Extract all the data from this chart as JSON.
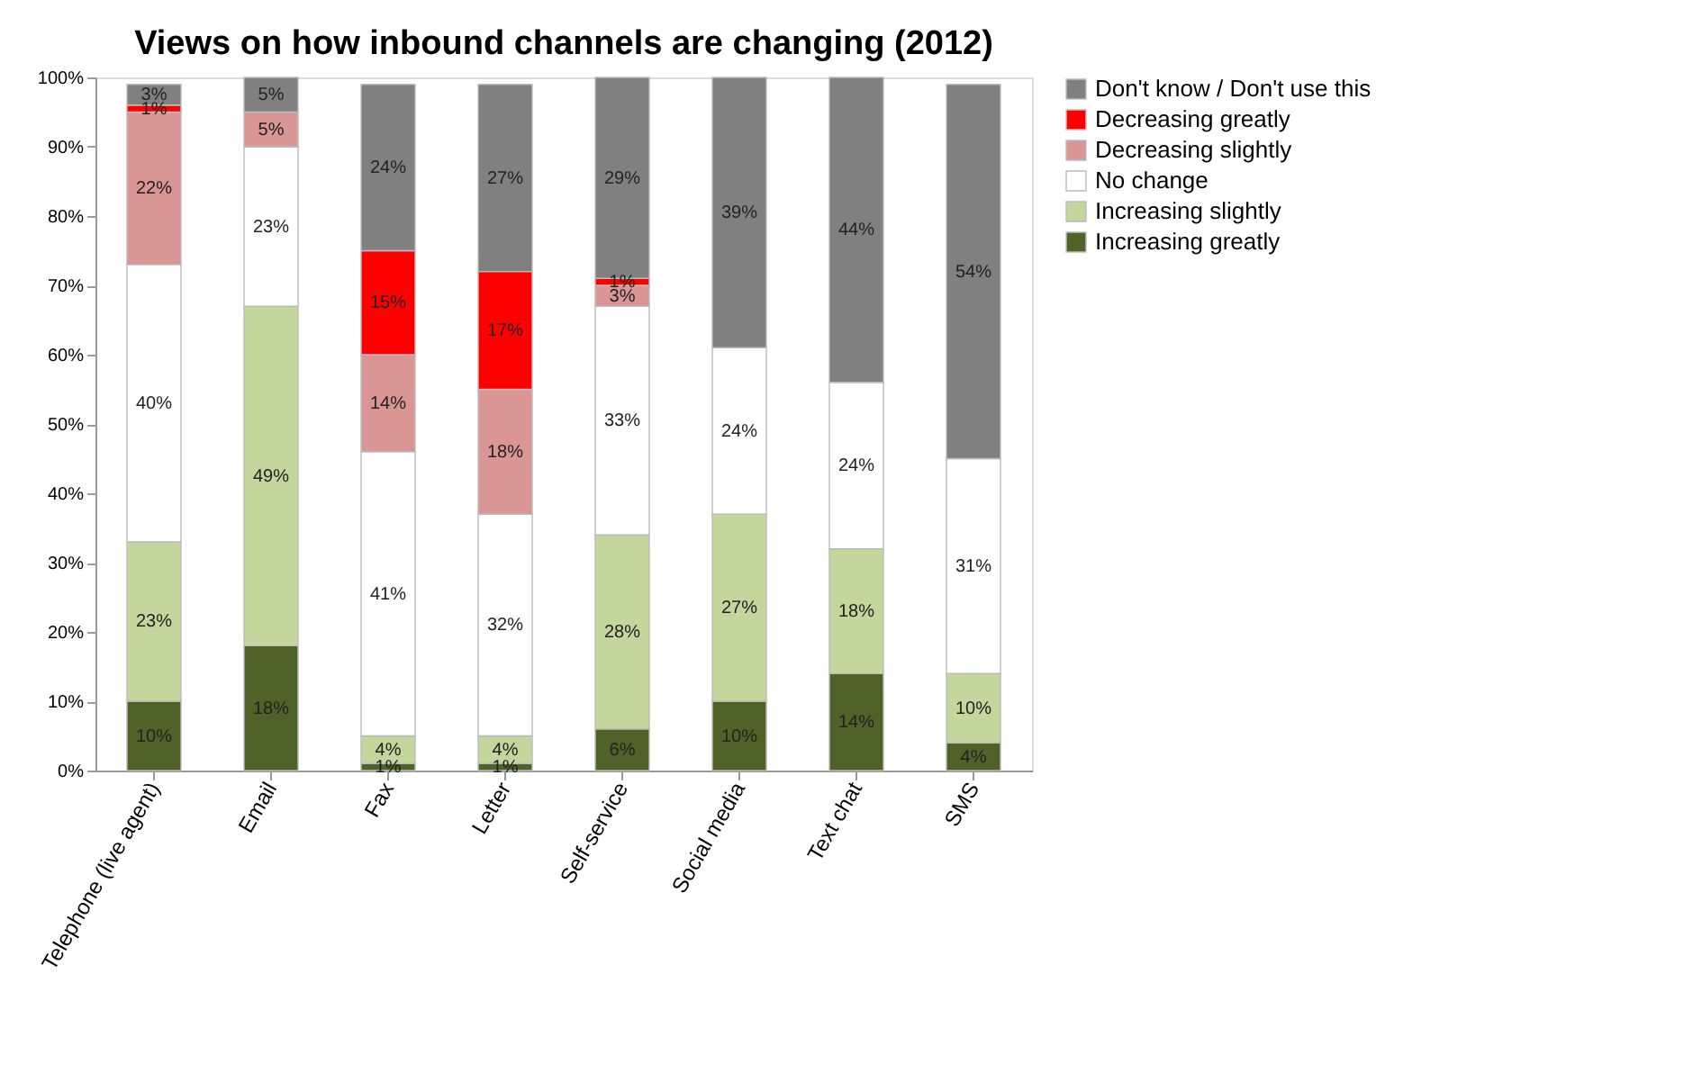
{
  "chart_data": {
    "type": "bar",
    "stacked": true,
    "title": "Views on how inbound channels are changing (2012)",
    "categories": [
      "Telephone (live agent)",
      "Email",
      "Fax",
      "Letter",
      "Self-service",
      "Social media",
      "Text chat",
      "SMS"
    ],
    "series": [
      {
        "name": "Increasing greatly",
        "color": "#4f6228",
        "values": [
          10,
          18,
          1,
          1,
          6,
          10,
          14,
          4
        ],
        "value_labels": [
          "10%",
          "18%",
          "1%",
          "1%",
          "6%",
          "10%",
          "14%",
          "4%"
        ]
      },
      {
        "name": "Increasing slightly",
        "color": "#c3d69b",
        "values": [
          23,
          49,
          4,
          4,
          28,
          27,
          18,
          10
        ],
        "value_labels": [
          "23%",
          "49%",
          "4%",
          "4%",
          "28%",
          "27%",
          "18%",
          "10%"
        ]
      },
      {
        "name": "No change",
        "color": "#ffffff",
        "values": [
          40,
          23,
          41,
          32,
          33,
          24,
          24,
          31
        ],
        "value_labels": [
          "40%",
          "23%",
          "41%",
          "32%",
          "33%",
          "24%",
          "24%",
          "31%"
        ]
      },
      {
        "name": "Decreasing slightly",
        "color": "#d99694",
        "values": [
          22,
          5,
          14,
          18,
          3,
          null,
          null,
          null
        ],
        "value_labels": [
          "22%",
          "5%",
          "14%",
          "18%",
          "3%",
          null,
          null,
          null
        ]
      },
      {
        "name": "Decreasing greatly",
        "color": "#ff0000",
        "values": [
          1,
          null,
          15,
          17,
          1,
          null,
          null,
          null
        ],
        "value_labels": [
          "1%",
          null,
          "15%",
          "17%",
          "1%",
          null,
          null,
          null
        ]
      },
      {
        "name": "Don't know / Don't use this",
        "color": "#808080",
        "values": [
          3,
          5,
          24,
          27,
          29,
          39,
          44,
          54
        ],
        "value_labels": [
          "3%",
          "5%",
          "24%",
          "27%",
          "29%",
          "39%",
          "44%",
          "54%"
        ]
      }
    ],
    "ylim": [
      0,
      100
    ],
    "yticks": [
      {
        "value": 0,
        "label": "0%"
      },
      {
        "value": 10,
        "label": "10%"
      },
      {
        "value": 20,
        "label": "20%"
      },
      {
        "value": 30,
        "label": "30%"
      },
      {
        "value": 40,
        "label": "40%"
      },
      {
        "value": 50,
        "label": "50%"
      },
      {
        "value": 60,
        "label": "60%"
      },
      {
        "value": 70,
        "label": "70%"
      },
      {
        "value": 80,
        "label": "80%"
      },
      {
        "value": 90,
        "label": "90%"
      },
      {
        "value": 100,
        "label": "100%"
      }
    ],
    "grid": false,
    "legend": "right"
  }
}
